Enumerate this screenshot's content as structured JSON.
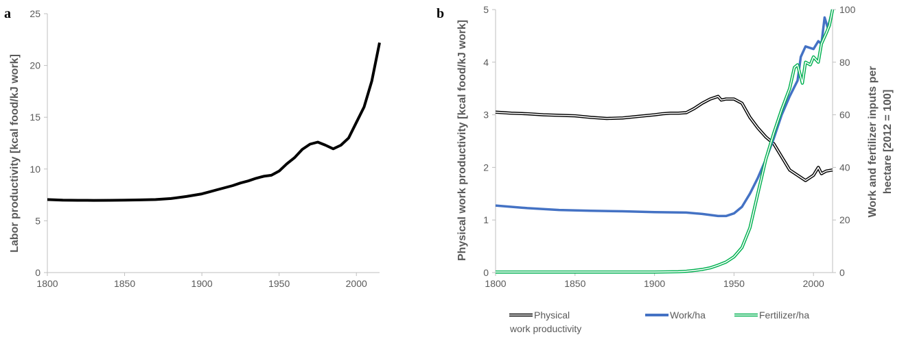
{
  "chart_data": [
    {
      "type": "line",
      "panel_label": "a",
      "title": "",
      "xlabel": "",
      "ylabel": "Labor productivity [kcal food/kJ work]",
      "xlim": [
        1800,
        2015
      ],
      "ylim": [
        0,
        25
      ],
      "xticks": [
        1800,
        1850,
        1900,
        1950,
        2000
      ],
      "yticks": [
        0,
        5,
        10,
        15,
        20,
        25
      ],
      "grid": false,
      "legend": "none",
      "series": [
        {
          "color": "#000000",
          "style": "solid",
          "x": [
            1800,
            1810,
            1820,
            1830,
            1840,
            1850,
            1860,
            1870,
            1880,
            1890,
            1900,
            1905,
            1910,
            1915,
            1920,
            1925,
            1930,
            1935,
            1940,
            1945,
            1950,
            1955,
            1960,
            1965,
            1970,
            1975,
            1980,
            1985,
            1990,
            1995,
            2000,
            2005,
            2010,
            2015
          ],
          "y": [
            7.05,
            7.0,
            6.98,
            6.97,
            6.98,
            7.0,
            7.02,
            7.05,
            7.15,
            7.35,
            7.6,
            7.8,
            8.0,
            8.2,
            8.4,
            8.65,
            8.85,
            9.1,
            9.3,
            9.4,
            9.8,
            10.5,
            11.1,
            11.9,
            12.4,
            12.6,
            12.3,
            11.95,
            12.3,
            13.0,
            14.5,
            16.0,
            18.5,
            22.2
          ]
        }
      ]
    },
    {
      "type": "line",
      "panel_label": "b",
      "title": "",
      "xlabel": "",
      "ylabel": "Physical work productivity [kcal food/kJ work]",
      "y2label_line1": "Work and fertilizer inputs per",
      "y2label_line2": "hectare [2012 = 100]",
      "xlim": [
        1800,
        2012
      ],
      "ylim": [
        0,
        5
      ],
      "y2lim": [
        0,
        100
      ],
      "xticks": [
        1800,
        1850,
        1900,
        1950,
        2000
      ],
      "yticks": [
        0,
        1,
        2,
        3,
        4,
        5
      ],
      "y2ticks": [
        0,
        20,
        40,
        60,
        80,
        100
      ],
      "grid": false,
      "legend": "bottom",
      "series": [
        {
          "name": "Physical work productivity",
          "legend_line1": "Physical",
          "legend_line2": "work productivity",
          "axis": "left",
          "color": "#000000",
          "style": "double",
          "x": [
            1800,
            1810,
            1820,
            1830,
            1840,
            1850,
            1860,
            1870,
            1880,
            1890,
            1900,
            1905,
            1910,
            1915,
            1920,
            1925,
            1930,
            1935,
            1940,
            1942,
            1945,
            1950,
            1955,
            1960,
            1965,
            1970,
            1975,
            1980,
            1985,
            1990,
            1995,
            2000,
            2003,
            2005,
            2008,
            2012
          ],
          "y": [
            3.05,
            3.03,
            3.02,
            3.0,
            2.99,
            2.98,
            2.95,
            2.93,
            2.94,
            2.97,
            3.0,
            3.02,
            3.03,
            3.03,
            3.04,
            3.12,
            3.22,
            3.3,
            3.35,
            3.28,
            3.3,
            3.3,
            3.22,
            2.95,
            2.75,
            2.58,
            2.45,
            2.2,
            1.95,
            1.85,
            1.75,
            1.85,
            2.0,
            1.88,
            1.93,
            1.95
          ]
        },
        {
          "name": "Work/ha",
          "legend_line1": "Work/ha",
          "axis": "right",
          "color": "#4472C4",
          "style": "solid",
          "x": [
            1800,
            1820,
            1840,
            1860,
            1880,
            1900,
            1920,
            1930,
            1940,
            1945,
            1950,
            1955,
            1960,
            1965,
            1970,
            1975,
            1980,
            1985,
            1990,
            1992,
            1995,
            2000,
            2003,
            2005,
            2007,
            2009,
            2012
          ],
          "y": [
            25.5,
            24.5,
            23.8,
            23.5,
            23.3,
            23.0,
            22.8,
            22.3,
            21.5,
            21.5,
            22.5,
            25.0,
            30.0,
            36.0,
            43.0,
            51.0,
            60.0,
            67.0,
            73.0,
            82.0,
            86.0,
            85.0,
            88.0,
            87.0,
            97.0,
            93.0,
            100.0
          ]
        },
        {
          "name": "Fertilizer/ha",
          "legend_line1": "Fertilizer/ha",
          "axis": "right",
          "color": "#00B050",
          "style": "double",
          "x": [
            1800,
            1850,
            1900,
            1915,
            1920,
            1925,
            1930,
            1935,
            1940,
            1945,
            1950,
            1955,
            1960,
            1965,
            1970,
            1975,
            1980,
            1985,
            1988,
            1990,
            1993,
            1995,
            1998,
            2000,
            2003,
            2005,
            2008,
            2010,
            2012
          ],
          "y": [
            0.2,
            0.2,
            0.2,
            0.3,
            0.5,
            0.8,
            1.2,
            1.8,
            2.8,
            4.0,
            6.0,
            9.5,
            17.0,
            30.0,
            43.0,
            53.0,
            62.0,
            70.0,
            78.0,
            79.0,
            72.0,
            80.0,
            79.0,
            82.0,
            80.0,
            87.0,
            91.0,
            94.0,
            100.0
          ]
        }
      ]
    }
  ]
}
